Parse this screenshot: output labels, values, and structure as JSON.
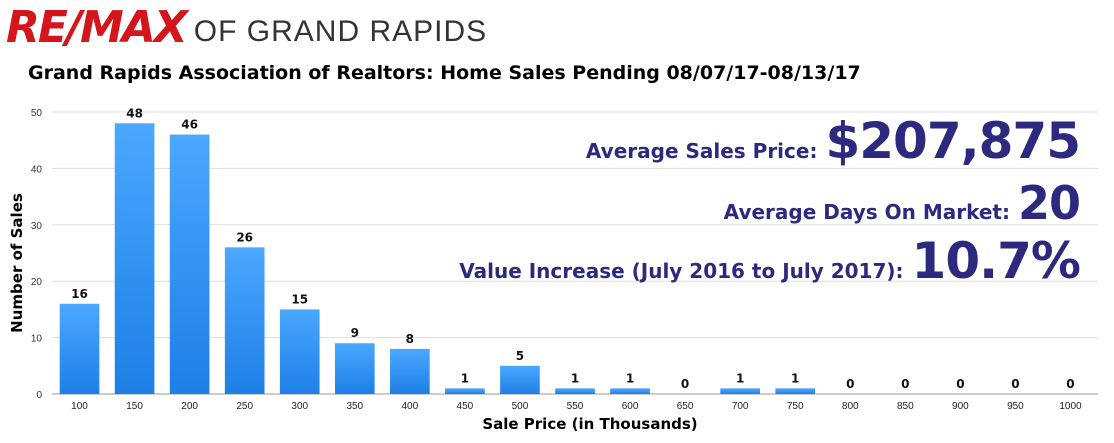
{
  "logo": {
    "brand": "RE/MAX",
    "subtitle": "OF GRAND RAPIDS"
  },
  "title": "Grand Rapids Association of Realtors: Home Sales Pending 08/07/17-08/13/17",
  "stats": [
    {
      "label": "Average Sales Price:",
      "value": "$207,875"
    },
    {
      "label": "Average Days On Market:",
      "value": "20"
    },
    {
      "label": "Value Increase (July 2016 to July 2017):",
      "value": "10.7%"
    }
  ],
  "colors": {
    "bar": "#1e7fe6",
    "bar_light": "#4aa8ff",
    "stat_text": "#2b2a7e",
    "logo_red": "#d4151c"
  },
  "chart_data": {
    "type": "bar",
    "xlabel": "Sale Price (in Thousands)",
    "ylabel": "Number of Sales",
    "ylim": [
      0,
      50
    ],
    "yticks": [
      0,
      10,
      20,
      30,
      40,
      50
    ],
    "grid": true,
    "categories": [
      "100",
      "150",
      "200",
      "250",
      "300",
      "350",
      "400",
      "450",
      "500",
      "550",
      "600",
      "650",
      "700",
      "750",
      "800",
      "850",
      "900",
      "950",
      "1000"
    ],
    "values": [
      16,
      48,
      46,
      26,
      15,
      9,
      8,
      1,
      5,
      1,
      1,
      0,
      1,
      1,
      0,
      0,
      0,
      0,
      0
    ]
  }
}
